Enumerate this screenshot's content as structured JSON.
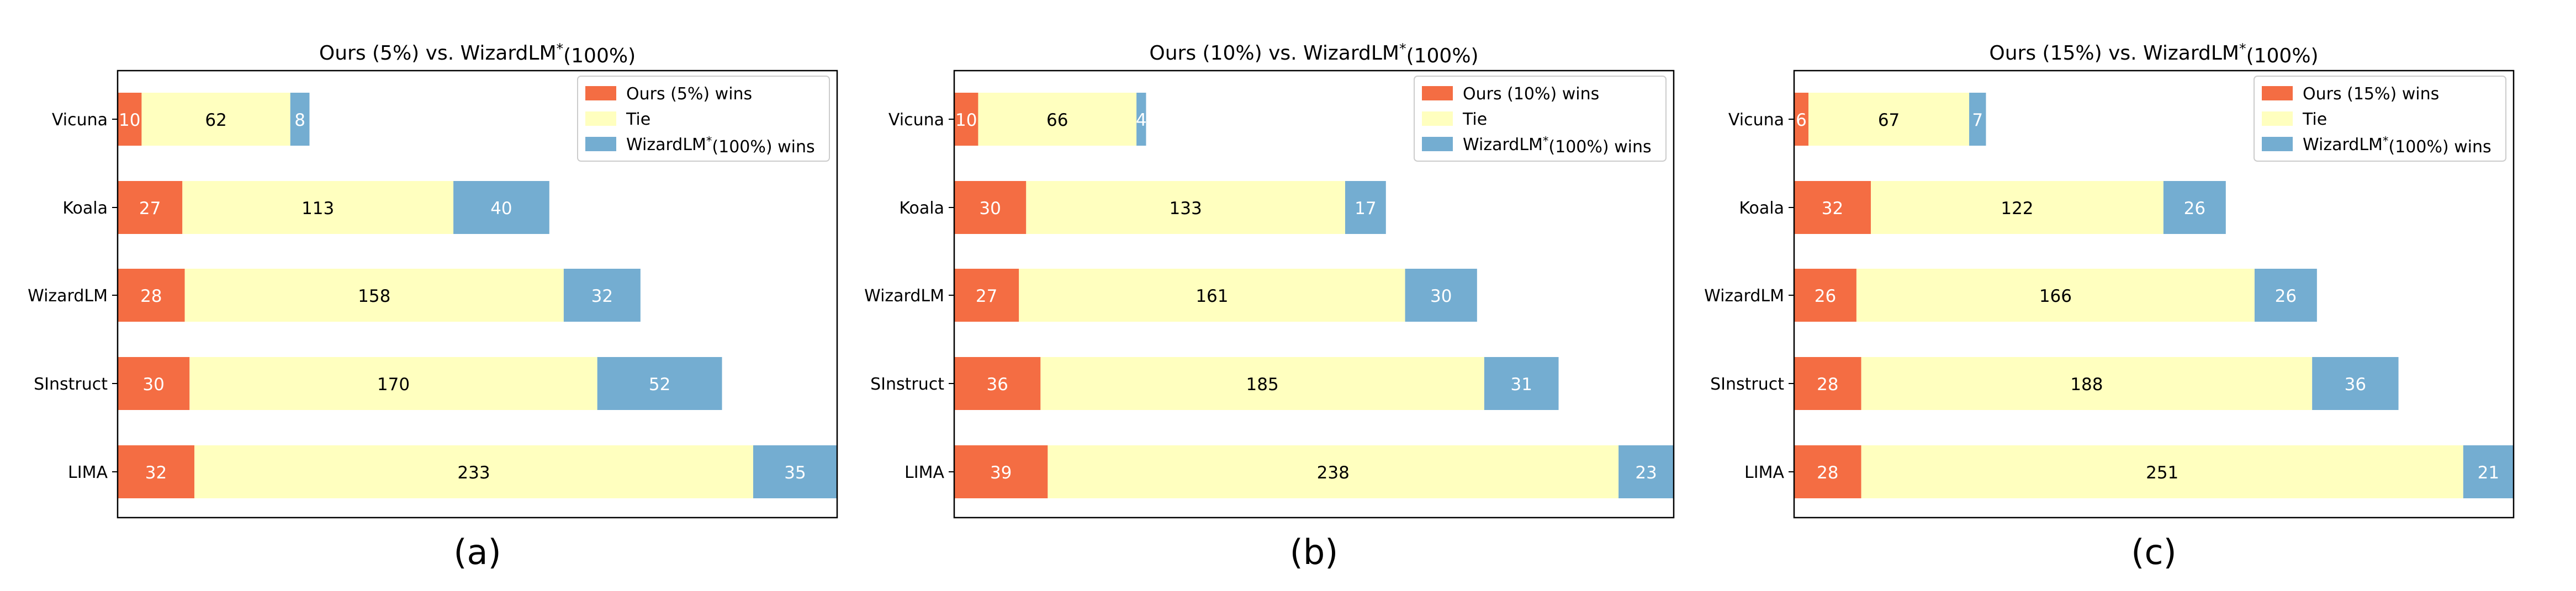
{
  "chart_data": [
    {
      "type": "bar",
      "orientation": "horizontal-stacked",
      "title": "Ours (5%) vs. WizardLM",
      "title_sup": "*",
      "title_suffix": "(100%)",
      "caption": "(a)",
      "categories": [
        "Vicuna",
        "Koala",
        "WizardLM",
        "SInstruct",
        "LIMA"
      ],
      "series": [
        {
          "name": "Ours (5%) wins",
          "values": [
            10,
            27,
            28,
            30,
            32
          ],
          "color": "#f46d43"
        },
        {
          "name": "Tie",
          "values": [
            62,
            113,
            158,
            170,
            233
          ],
          "color": "#ffffbf"
        },
        {
          "name_prefix": "WizardLM",
          "name_sup": "*",
          "name_suffix": "(100%) wins",
          "values": [
            8,
            40,
            32,
            52,
            35
          ],
          "color": "#74add1"
        }
      ],
      "xlim": [
        0,
        300
      ],
      "legend": "top-right",
      "grid": false
    },
    {
      "type": "bar",
      "orientation": "horizontal-stacked",
      "title": "Ours (10%) vs. WizardLM",
      "title_sup": "*",
      "title_suffix": "(100%)",
      "caption": "(b)",
      "categories": [
        "Vicuna",
        "Koala",
        "WizardLM",
        "SInstruct",
        "LIMA"
      ],
      "series": [
        {
          "name": "Ours (10%) wins",
          "values": [
            10,
            30,
            27,
            36,
            39
          ],
          "color": "#f46d43"
        },
        {
          "name": "Tie",
          "values": [
            66,
            133,
            161,
            185,
            238
          ],
          "color": "#ffffbf"
        },
        {
          "name_prefix": "WizardLM",
          "name_sup": "*",
          "name_suffix": "(100%) wins",
          "values": [
            4,
            17,
            30,
            31,
            23
          ],
          "color": "#74add1"
        }
      ],
      "xlim": [
        0,
        300
      ],
      "legend": "top-right",
      "grid": false
    },
    {
      "type": "bar",
      "orientation": "horizontal-stacked",
      "title": "Ours (15%) vs. WizardLM",
      "title_sup": "*",
      "title_suffix": "(100%)",
      "caption": "(c)",
      "categories": [
        "Vicuna",
        "Koala",
        "WizardLM",
        "SInstruct",
        "LIMA"
      ],
      "series": [
        {
          "name": "Ours (15%) wins",
          "values": [
            6,
            32,
            26,
            28,
            28
          ],
          "color": "#f46d43"
        },
        {
          "name": "Tie",
          "values": [
            67,
            122,
            166,
            188,
            251
          ],
          "color": "#ffffbf"
        },
        {
          "name_prefix": "WizardLM",
          "name_sup": "*",
          "name_suffix": "(100%) wins",
          "values": [
            7,
            26,
            26,
            36,
            21
          ],
          "color": "#74add1"
        }
      ],
      "xlim": [
        0,
        300
      ],
      "legend": "top-right",
      "grid": false
    }
  ]
}
